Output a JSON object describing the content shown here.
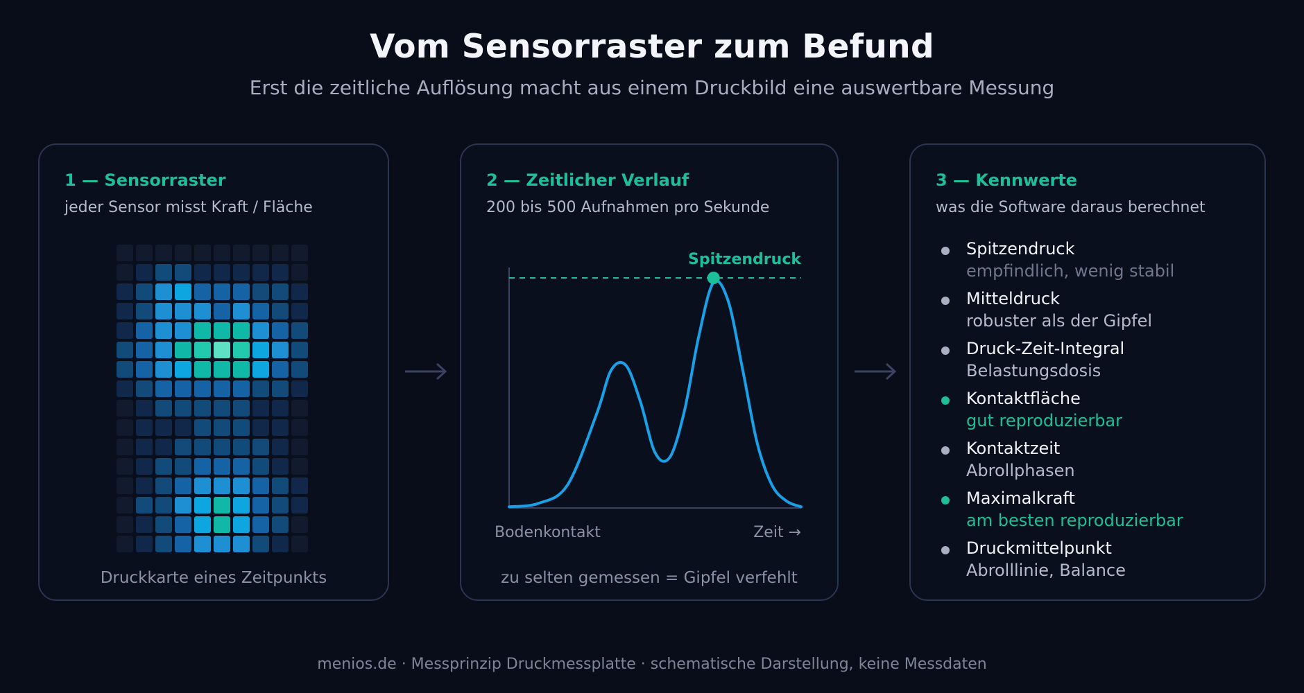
{
  "header": {
    "title": "Vom Sensorraster zum Befund",
    "subtitle": "Erst die zeitliche Auflösung macht aus einem Druckbild eine auswertbare Messung"
  },
  "panel1": {
    "title": "1 — Sensorraster",
    "subtitle": "jeder Sensor misst Kraft / Fläche",
    "caption": "Druckkarte eines Zeitpunkts",
    "heatmap_levels": [
      [
        0,
        0,
        0,
        0,
        0,
        0,
        0,
        0,
        0,
        0
      ],
      [
        0,
        1,
        2,
        2,
        1,
        1,
        1,
        1,
        1,
        0
      ],
      [
        1,
        2,
        4,
        5,
        3,
        3,
        3,
        2,
        2,
        1
      ],
      [
        1,
        2,
        4,
        4,
        4,
        3,
        4,
        3,
        2,
        1
      ],
      [
        1,
        3,
        4,
        4,
        6,
        6,
        6,
        4,
        3,
        2
      ],
      [
        2,
        3,
        4,
        6,
        7,
        8,
        7,
        5,
        4,
        2
      ],
      [
        2,
        3,
        4,
        5,
        6,
        6,
        6,
        5,
        3,
        2
      ],
      [
        1,
        2,
        3,
        3,
        3,
        3,
        3,
        2,
        2,
        1
      ],
      [
        0,
        1,
        2,
        2,
        2,
        2,
        2,
        1,
        1,
        0
      ],
      [
        0,
        1,
        1,
        1,
        2,
        2,
        2,
        1,
        1,
        0
      ],
      [
        0,
        1,
        1,
        2,
        2,
        2,
        2,
        2,
        1,
        0
      ],
      [
        0,
        1,
        2,
        2,
        3,
        3,
        3,
        2,
        1,
        0
      ],
      [
        0,
        1,
        2,
        3,
        4,
        4,
        4,
        3,
        2,
        1
      ],
      [
        0,
        2,
        2,
        4,
        5,
        6,
        5,
        3,
        2,
        1
      ],
      [
        0,
        1,
        2,
        3,
        5,
        6,
        5,
        3,
        2,
        0
      ],
      [
        0,
        1,
        2,
        3,
        4,
        4,
        4,
        2,
        1,
        0
      ]
    ],
    "level_colors": [
      "#121a2e",
      "#12284a",
      "#124a7a",
      "#1563a5",
      "#1e8fd3",
      "#0ea6e0",
      "#10b8a8",
      "#22c9ad",
      "#5de0c4"
    ]
  },
  "panel2": {
    "title": "2 — Zeitlicher Verlauf",
    "subtitle": "200 bis 500 Aufnahmen pro Sekunde",
    "peak_label": "Spitzendruck",
    "x_start_label": "Bodenkontakt",
    "x_end_label": "Zeit →",
    "caption": "zu selten gemessen = Gipfel verfehlt"
  },
  "chart_data": {
    "type": "line",
    "title": "",
    "xlabel": "Zeit →",
    "ylabel": "",
    "x": [
      0,
      0.1,
      0.2,
      0.3,
      0.35,
      0.4,
      0.45,
      0.5,
      0.55,
      0.6,
      0.65,
      0.7,
      0.75,
      0.8,
      0.85,
      0.9,
      0.95,
      1.0
    ],
    "y": [
      0.005,
      0.02,
      0.1,
      0.41,
      0.6,
      0.62,
      0.46,
      0.24,
      0.22,
      0.42,
      0.75,
      0.98,
      0.9,
      0.6,
      0.28,
      0.1,
      0.03,
      0.005
    ],
    "peak": {
      "x": 0.7,
      "y": 1.0,
      "label": "Spitzendruck"
    },
    "reference_line": {
      "y": 1.0,
      "style": "dashed"
    },
    "annotations": [
      "Bodenkontakt",
      "Zeit →"
    ],
    "ylim": [
      0,
      1
    ],
    "grid": false,
    "series": [
      {
        "color": "#1aa0e6"
      }
    ]
  },
  "panel3": {
    "title": "3 — Kennwerte",
    "subtitle": "was die Software daraus berechnet",
    "params": [
      {
        "name": "Spitzendruck",
        "desc": "empfindlich, wenig stabil",
        "accent": false,
        "muted": true
      },
      {
        "name": "Mitteldruck",
        "desc": "robuster als der Gipfel",
        "accent": false,
        "muted": false
      },
      {
        "name": "Druck-Zeit-Integral",
        "desc": "Belastungsdosis",
        "accent": false,
        "muted": false
      },
      {
        "name": "Kontaktfläche",
        "desc": "gut reproduzierbar",
        "accent": true,
        "muted": false
      },
      {
        "name": "Kontaktzeit",
        "desc": "Abrollphasen",
        "accent": false,
        "muted": false
      },
      {
        "name": "Maximalkraft",
        "desc": "am besten reproduzierbar",
        "accent": true,
        "muted": false
      },
      {
        "name": "Druckmittelpunkt",
        "desc": "Abrolllinie, Balance",
        "accent": false,
        "muted": false
      }
    ]
  },
  "colors": {
    "accent": "#1dbf9b",
    "line": "#1aa0e6",
    "border": "#2c3550",
    "background": "#090d1a"
  },
  "footer": {
    "text": "menios.de · Messprinzip Druckmessplatte · schematische Darstellung, keine Messdaten"
  }
}
